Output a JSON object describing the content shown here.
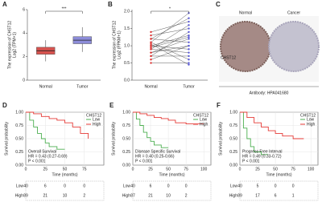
{
  "chart_data": [
    {
      "type": "box",
      "label": "A",
      "ylabel": [
        "The expression of CHST12",
        "Log2 (TPM+1)"
      ],
      "categories": [
        "Normal",
        "Tumor"
      ],
      "boxes": [
        {
          "color": "#d9534f",
          "whisker_low": 1.6,
          "q1": 2.2,
          "median": 2.5,
          "q3": 2.8,
          "whisker_high": 3.4
        },
        {
          "color": "#8c8cd9",
          "whisker_low": 2.4,
          "q1": 3.1,
          "median": 3.4,
          "q3": 3.7,
          "whisker_high": 4.5
        }
      ],
      "significance": "***",
      "ylim": [
        0,
        6
      ],
      "yticks": [
        0,
        2,
        4,
        6
      ]
    },
    {
      "type": "paired",
      "label": "B",
      "ylabel": [
        "The expression of CHST12",
        "Log2 (FPKM+1)"
      ],
      "categories": [
        "Normal",
        "Tumor"
      ],
      "colors": [
        "#e0302f",
        "#5b5bd6"
      ],
      "pairs": [
        [
          1.1,
          1.95
        ],
        [
          1.2,
          1.8
        ],
        [
          0.9,
          1.6
        ],
        [
          1.3,
          1.5
        ],
        [
          0.7,
          1.4
        ],
        [
          1.0,
          1.3
        ],
        [
          0.8,
          1.2
        ],
        [
          1.2,
          1.1
        ],
        [
          0.6,
          1.0
        ],
        [
          1.0,
          0.9
        ],
        [
          0.9,
          0.8
        ],
        [
          0.7,
          0.7
        ],
        [
          1.1,
          0.6
        ],
        [
          0.5,
          0.5
        ],
        [
          1.4,
          1.7
        ],
        [
          0.8,
          1.0
        ],
        [
          1.05,
          0.45
        ],
        [
          0.95,
          1.25
        ]
      ],
      "significance": "*",
      "ylim": [
        0,
        2.05
      ],
      "yticks": [
        {
          "value": 0,
          "label": "0.0"
        },
        {
          "value": 0.5,
          "label": "0.5"
        },
        {
          "value": 1,
          "label": "1.0"
        },
        {
          "value": 1.5,
          "label": "1.5"
        },
        {
          "value": 2,
          "label": "2.0"
        }
      ]
    },
    {
      "type": "km",
      "label": "D",
      "title": "Overall Survival",
      "hr": "HR = 0.43 (0.27-0.69)",
      "p": "P < 0.001",
      "legend_title": "CHST12",
      "xlabel": "Time (months)",
      "ylabel": "Survival probability",
      "xlim": [
        0,
        100
      ],
      "xticks": [
        0,
        25,
        50,
        75
      ],
      "ylim": [
        0,
        1
      ],
      "yticks": [
        {
          "value": 0,
          "label": "0.00"
        },
        {
          "value": 0.25,
          "label": "0.25"
        },
        {
          "value": 0.5,
          "label": "0.50"
        },
        {
          "value": 0.75,
          "label": "0.75"
        },
        {
          "value": 1,
          "label": "1.00"
        }
      ],
      "series": [
        {
          "name": "Low",
          "color": "#4caf50",
          "x": [
            0,
            5,
            10,
            15,
            20,
            25,
            30,
            40,
            50
          ],
          "values": [
            1,
            0.85,
            0.72,
            0.6,
            0.5,
            0.42,
            0.35,
            0.3,
            0.3
          ],
          "at_risk": [
            40,
            6,
            0,
            0
          ]
        },
        {
          "name": "High",
          "color": "#e53935",
          "x": [
            0,
            10,
            20,
            30,
            40,
            50,
            60,
            70,
            80
          ],
          "values": [
            1,
            0.97,
            0.92,
            0.88,
            0.85,
            0.8,
            0.72,
            0.6,
            0.5
          ],
          "at_risk": [
            89,
            21,
            10,
            2
          ]
        }
      ]
    },
    {
      "type": "km",
      "label": "E",
      "title": "Disease Specific Survival",
      "hr": "HR = 0.40 (0.25-0.66)",
      "p": "P < 0.001",
      "legend_title": "CHST12",
      "xlabel": "Time (months)",
      "ylabel": "Survival probability",
      "xlim": [
        0,
        110
      ],
      "xticks": [
        0,
        25,
        50,
        75,
        100
      ],
      "ylim": [
        0,
        1
      ],
      "yticks": [
        {
          "value": 0,
          "label": "0.00"
        },
        {
          "value": 0.25,
          "label": "0.25"
        },
        {
          "value": 0.5,
          "label": "0.50"
        },
        {
          "value": 0.75,
          "label": "0.75"
        },
        {
          "value": 1,
          "label": "1.00"
        }
      ],
      "series": [
        {
          "name": "Low",
          "color": "#4caf50",
          "x": [
            0,
            5,
            10,
            15,
            20,
            25,
            30,
            40,
            50
          ],
          "values": [
            1,
            0.87,
            0.75,
            0.62,
            0.52,
            0.45,
            0.38,
            0.33,
            0.33
          ],
          "at_risk": [
            40,
            6,
            0,
            0
          ]
        },
        {
          "name": "High",
          "color": "#e53935",
          "x": [
            0,
            10,
            20,
            30,
            40,
            50,
            60,
            75,
            100
          ],
          "values": [
            1,
            0.97,
            0.94,
            0.9,
            0.88,
            0.85,
            0.8,
            0.78,
            0.78
          ],
          "at_risk": [
            87,
            21,
            10,
            2
          ]
        }
      ]
    },
    {
      "type": "km",
      "label": "F",
      "title": "Progress Free Interval",
      "hr": "HR = 0.49 (0.33-0.72)",
      "p": "P < 0.001",
      "legend_title": "CHST12",
      "xlabel": "Time (months)",
      "ylabel": "Survival probability",
      "xlim": [
        0,
        110
      ],
      "xticks": [
        0,
        25,
        50,
        75,
        100
      ],
      "ylim": [
        0,
        1
      ],
      "yticks": [
        {
          "value": 0,
          "label": "0.00"
        },
        {
          "value": 0.25,
          "label": "0.25"
        },
        {
          "value": 0.5,
          "label": "0.50"
        },
        {
          "value": 0.75,
          "label": "0.75"
        },
        {
          "value": 1,
          "label": "1.00"
        }
      ],
      "series": [
        {
          "name": "Low",
          "color": "#4caf50",
          "x": [
            0,
            5,
            10,
            15,
            20,
            30,
            40
          ],
          "values": [
            1,
            0.7,
            0.5,
            0.35,
            0.25,
            0.2,
            0.2
          ],
          "at_risk": [
            40,
            5,
            0,
            0
          ]
        },
        {
          "name": "High",
          "color": "#e53935",
          "x": [
            0,
            10,
            20,
            30,
            40,
            50,
            60,
            75,
            90
          ],
          "values": [
            1,
            0.9,
            0.8,
            0.72,
            0.65,
            0.6,
            0.55,
            0.5,
            0.5
          ],
          "at_risk": [
            89,
            17,
            6,
            1
          ]
        }
      ]
    }
  ],
  "panel_c": {
    "label": "C",
    "images": [
      "Normal",
      "Cancer"
    ],
    "protein": "CHST12",
    "antibody": "Antibody: HPA041680"
  }
}
